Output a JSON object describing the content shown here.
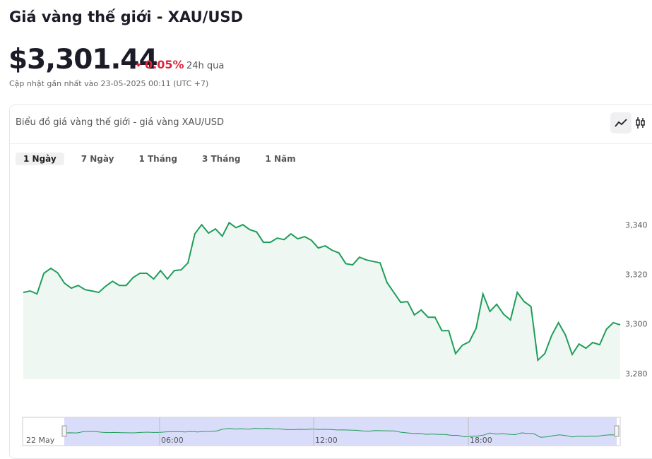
{
  "header": {
    "title": "Giá vàng thế giới - XAU/USD",
    "price": "$3,301.44",
    "change": "0.05%",
    "change_period": "24h qua",
    "updated": "Cập nhật gần nhất vào 23-05-2025 00:11 (UTC +7)"
  },
  "card": {
    "title": "Biểu đồ giá vàng thế giới - giá vàng XAU/USD",
    "tabs": [
      "1 Ngày",
      "7 Ngày",
      "1 Tháng",
      "3 Tháng",
      "1 Năm"
    ]
  },
  "chart_data": {
    "type": "area",
    "color": "#1f9d5a",
    "values": [
      3313.0,
      3313.6,
      3312.4,
      3320.7,
      3322.7,
      3320.9,
      3316.7,
      3314.7,
      3315.8,
      3314.1,
      3313.6,
      3313.0,
      3315.5,
      3317.5,
      3315.8,
      3315.8,
      3319.0,
      3320.7,
      3320.7,
      3318.4,
      3321.8,
      3318.4,
      3321.8,
      3322.1,
      3324.9,
      3336.6,
      3340.3,
      3336.9,
      3338.6,
      3335.7,
      3341.1,
      3339.1,
      3340.3,
      3338.3,
      3337.4,
      3333.2,
      3333.2,
      3334.9,
      3334.3,
      3336.6,
      3334.6,
      3335.5,
      3334.0,
      3330.9,
      3331.8,
      3330.0,
      3328.9,
      3324.6,
      3324.1,
      3327.2,
      3326.1,
      3325.5,
      3324.9,
      3317.0,
      3313.0,
      3309.0,
      3309.3,
      3303.9,
      3305.9,
      3303.0,
      3303.0,
      3297.6,
      3297.6,
      3288.3,
      3291.7,
      3293.1,
      3298.5,
      3312.4,
      3305.3,
      3308.2,
      3304.2,
      3301.9,
      3313.0,
      3309.3,
      3307.3,
      3285.7,
      3288.3,
      3295.6,
      3300.8,
      3295.9,
      3288.0,
      3292.2,
      3290.5,
      3292.8,
      3291.9,
      3298.2,
      3300.8,
      3299.9
    ],
    "ylim": [
      3278,
      3362
    ],
    "yticks": [
      {
        "value": 3280,
        "label": "3,280"
      },
      {
        "value": 3300,
        "label": "3,300"
      },
      {
        "value": 3320,
        "label": "3,320"
      },
      {
        "value": 3340,
        "label": "3,340"
      }
    ],
    "navigator_labels": [
      "22 May",
      "06:00",
      "12:00",
      "18:00"
    ]
  }
}
